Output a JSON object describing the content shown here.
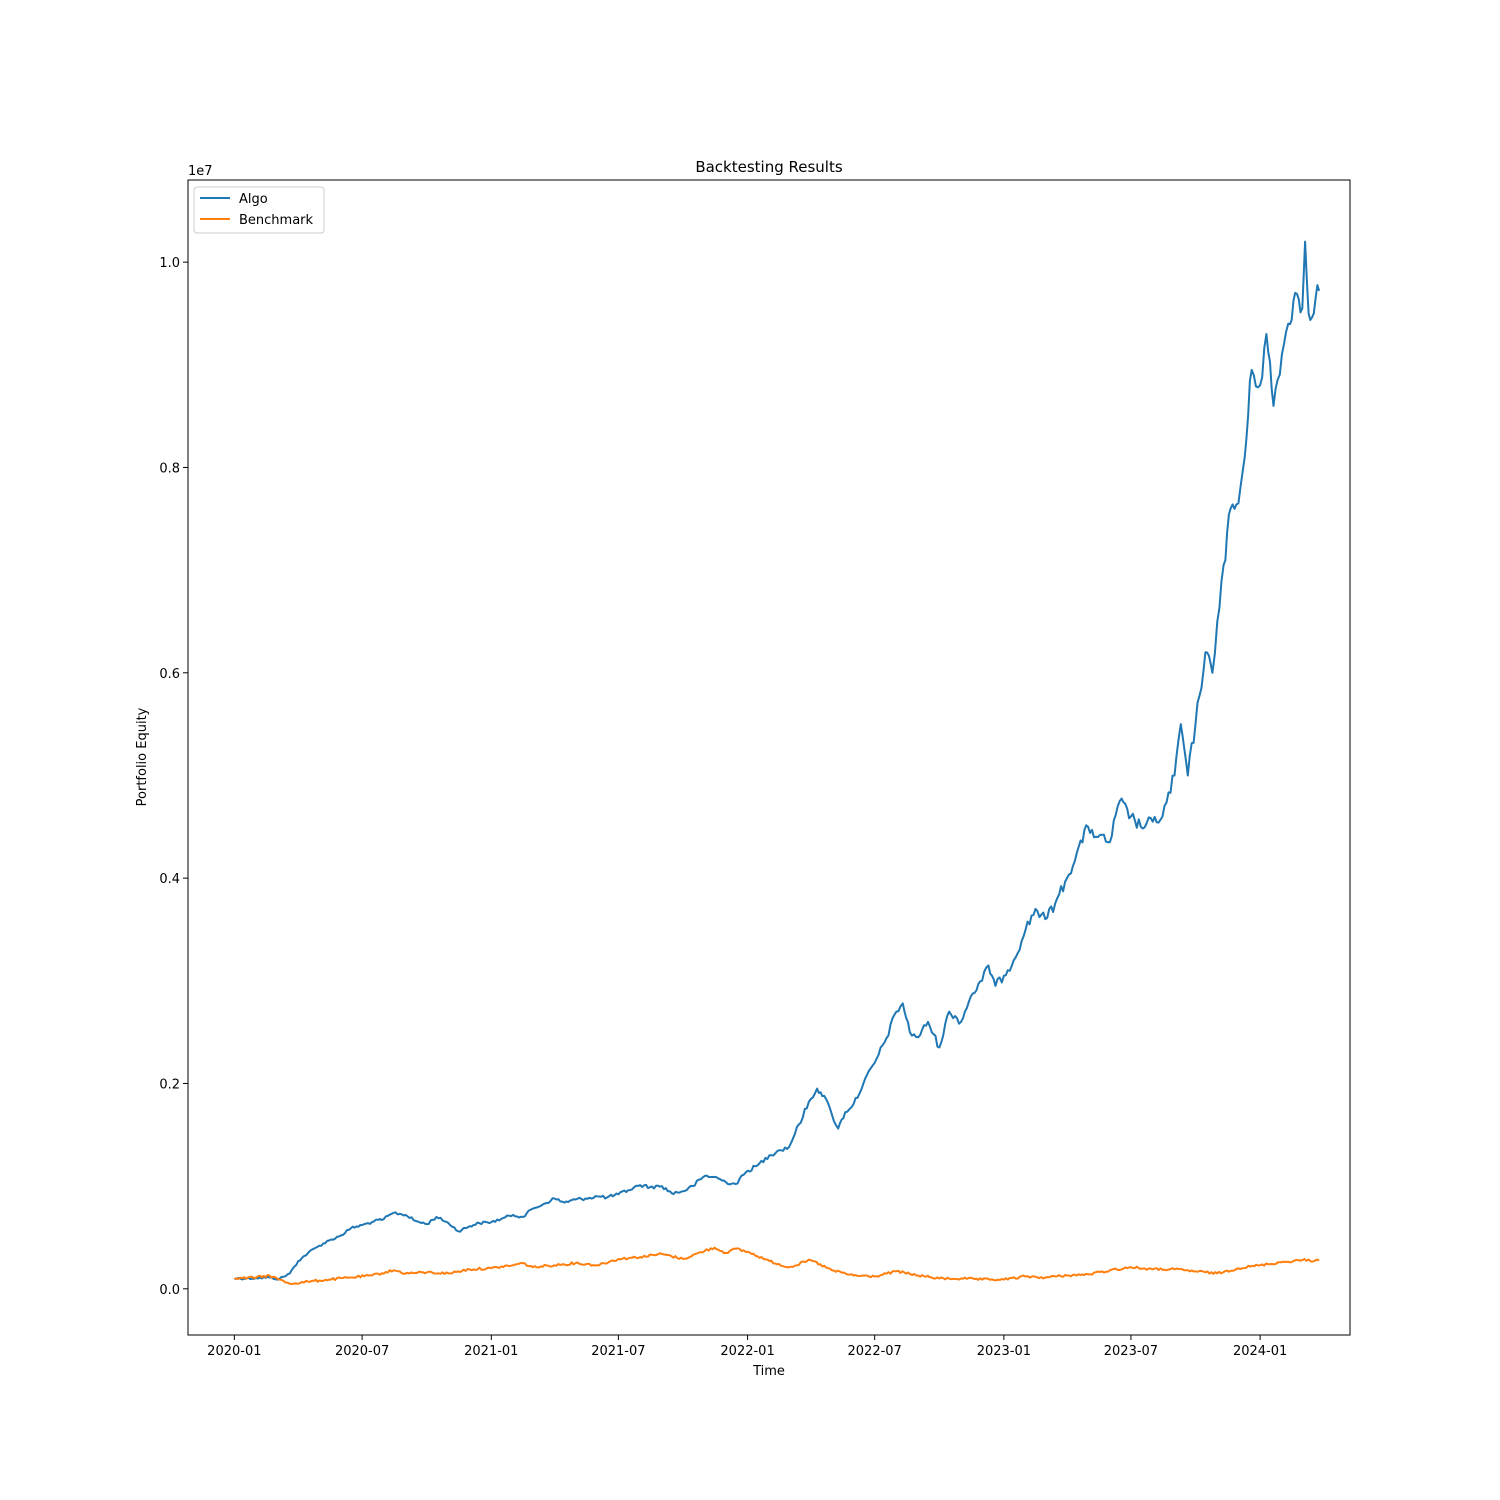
{
  "chart_data": {
    "type": "line",
    "title": "Backtesting Results",
    "xlabel": "Time",
    "ylabel": "Portfolio Equity",
    "y_offset_text": "1e7",
    "y_scale_factor": 10000000,
    "xlim": [
      "2019-10-27",
      "2024-05-08"
    ],
    "ylim": [
      -450000,
      10800000
    ],
    "x_ticks": [
      {
        "date": "2020-01-01",
        "label": "2020-01"
      },
      {
        "date": "2020-07-01",
        "label": "2020-07"
      },
      {
        "date": "2021-01-01",
        "label": "2021-01"
      },
      {
        "date": "2021-07-01",
        "label": "2021-07"
      },
      {
        "date": "2022-01-01",
        "label": "2022-01"
      },
      {
        "date": "2022-07-01",
        "label": "2022-07"
      },
      {
        "date": "2023-01-01",
        "label": "2023-01"
      },
      {
        "date": "2023-07-01",
        "label": "2023-07"
      },
      {
        "date": "2024-01-01",
        "label": "2024-01"
      }
    ],
    "y_ticks": [
      {
        "value": 0,
        "label": "0.0"
      },
      {
        "value": 2000000,
        "label": "0.2"
      },
      {
        "value": 4000000,
        "label": "0.4"
      },
      {
        "value": 6000000,
        "label": "0.6"
      },
      {
        "value": 8000000,
        "label": "0.8"
      },
      {
        "value": 10000000,
        "label": "1.0"
      }
    ],
    "grid": false,
    "legend_position": "top-left",
    "series": [
      {
        "name": "Algo",
        "color": "#1f77b4",
        "points": [
          [
            "2020-01-01",
            100000
          ],
          [
            "2020-02-01",
            105000
          ],
          [
            "2020-02-20",
            110000
          ],
          [
            "2020-03-05",
            95000
          ],
          [
            "2020-03-20",
            150000
          ],
          [
            "2020-04-01",
            270000
          ],
          [
            "2020-04-15",
            350000
          ],
          [
            "2020-05-01",
            420000
          ],
          [
            "2020-05-15",
            470000
          ],
          [
            "2020-06-01",
            520000
          ],
          [
            "2020-06-15",
            590000
          ],
          [
            "2020-07-01",
            620000
          ],
          [
            "2020-07-15",
            650000
          ],
          [
            "2020-08-01",
            680000
          ],
          [
            "2020-08-15",
            740000
          ],
          [
            "2020-09-01",
            720000
          ],
          [
            "2020-09-15",
            660000
          ],
          [
            "2020-10-01",
            630000
          ],
          [
            "2020-10-15",
            700000
          ],
          [
            "2020-11-01",
            640000
          ],
          [
            "2020-11-15",
            560000
          ],
          [
            "2020-12-01",
            610000
          ],
          [
            "2020-12-15",
            640000
          ],
          [
            "2021-01-01",
            650000
          ],
          [
            "2021-01-15",
            680000
          ],
          [
            "2021-02-01",
            720000
          ],
          [
            "2021-02-15",
            700000
          ],
          [
            "2021-03-01",
            780000
          ],
          [
            "2021-03-15",
            820000
          ],
          [
            "2021-04-01",
            880000
          ],
          [
            "2021-04-15",
            840000
          ],
          [
            "2021-05-01",
            870000
          ],
          [
            "2021-05-15",
            880000
          ],
          [
            "2021-06-01",
            900000
          ],
          [
            "2021-06-15",
            890000
          ],
          [
            "2021-07-01",
            920000
          ],
          [
            "2021-07-15",
            960000
          ],
          [
            "2021-08-01",
            1010000
          ],
          [
            "2021-08-15",
            990000
          ],
          [
            "2021-09-01",
            1000000
          ],
          [
            "2021-09-15",
            930000
          ],
          [
            "2021-10-01",
            950000
          ],
          [
            "2021-10-15",
            1000000
          ],
          [
            "2021-11-01",
            1100000
          ],
          [
            "2021-11-15",
            1090000
          ],
          [
            "2021-12-01",
            1040000
          ],
          [
            "2021-12-15",
            1020000
          ],
          [
            "2022-01-01",
            1150000
          ],
          [
            "2022-01-15",
            1200000
          ],
          [
            "2022-02-01",
            1300000
          ],
          [
            "2022-02-15",
            1350000
          ],
          [
            "2022-03-01",
            1380000
          ],
          [
            "2022-03-15",
            1600000
          ],
          [
            "2022-04-01",
            1850000
          ],
          [
            "2022-04-10",
            1950000
          ],
          [
            "2022-04-20",
            1880000
          ],
          [
            "2022-05-01",
            1700000
          ],
          [
            "2022-05-10",
            1560000
          ],
          [
            "2022-05-20",
            1720000
          ],
          [
            "2022-06-01",
            1800000
          ],
          [
            "2022-06-15",
            2000000
          ],
          [
            "2022-07-01",
            2200000
          ],
          [
            "2022-07-15",
            2400000
          ],
          [
            "2022-08-01",
            2700000
          ],
          [
            "2022-08-10",
            2780000
          ],
          [
            "2022-08-20",
            2500000
          ],
          [
            "2022-09-01",
            2450000
          ],
          [
            "2022-09-15",
            2600000
          ],
          [
            "2022-10-01",
            2350000
          ],
          [
            "2022-10-15",
            2700000
          ],
          [
            "2022-11-01",
            2600000
          ],
          [
            "2022-11-15",
            2850000
          ],
          [
            "2022-12-01",
            3000000
          ],
          [
            "2022-12-10",
            3150000
          ],
          [
            "2022-12-20",
            2950000
          ],
          [
            "2023-01-01",
            3050000
          ],
          [
            "2023-01-15",
            3200000
          ],
          [
            "2023-02-01",
            3500000
          ],
          [
            "2023-02-15",
            3700000
          ],
          [
            "2023-03-01",
            3600000
          ],
          [
            "2023-03-15",
            3750000
          ],
          [
            "2023-04-01",
            4000000
          ],
          [
            "2023-04-15",
            4250000
          ],
          [
            "2023-05-01",
            4500000
          ],
          [
            "2023-05-15",
            4400000
          ],
          [
            "2023-06-01",
            4350000
          ],
          [
            "2023-06-15",
            4750000
          ],
          [
            "2023-07-01",
            4600000
          ],
          [
            "2023-07-15",
            4500000
          ],
          [
            "2023-08-01",
            4550000
          ],
          [
            "2023-08-15",
            4600000
          ],
          [
            "2023-09-01",
            5000000
          ],
          [
            "2023-09-10",
            5500000
          ],
          [
            "2023-09-20",
            5000000
          ],
          [
            "2023-10-01",
            5500000
          ],
          [
            "2023-10-15",
            6200000
          ],
          [
            "2023-10-25",
            6000000
          ],
          [
            "2023-11-01",
            6500000
          ],
          [
            "2023-11-10",
            7050000
          ],
          [
            "2023-11-20",
            7600000
          ],
          [
            "2023-12-01",
            7650000
          ],
          [
            "2023-12-10",
            8100000
          ],
          [
            "2023-12-20",
            8950000
          ],
          [
            "2024-01-01",
            8800000
          ],
          [
            "2024-01-10",
            9300000
          ],
          [
            "2024-01-20",
            8600000
          ],
          [
            "2024-02-01",
            9100000
          ],
          [
            "2024-02-10",
            9400000
          ],
          [
            "2024-02-20",
            9700000
          ],
          [
            "2024-03-01",
            9550000
          ],
          [
            "2024-03-05",
            10200000
          ],
          [
            "2024-03-10",
            9500000
          ],
          [
            "2024-03-20",
            9650000
          ],
          [
            "2024-03-25",
            9720000
          ]
        ]
      },
      {
        "name": "Benchmark",
        "color": "#ff7f0e",
        "points": [
          [
            "2020-01-01",
            100000
          ],
          [
            "2020-02-01",
            110000
          ],
          [
            "2020-02-20",
            130000
          ],
          [
            "2020-03-05",
            90000
          ],
          [
            "2020-03-20",
            50000
          ],
          [
            "2020-04-15",
            70000
          ],
          [
            "2020-05-15",
            90000
          ],
          [
            "2020-06-15",
            110000
          ],
          [
            "2020-07-15",
            130000
          ],
          [
            "2020-08-15",
            180000
          ],
          [
            "2020-09-01",
            150000
          ],
          [
            "2020-10-01",
            160000
          ],
          [
            "2020-11-01",
            150000
          ],
          [
            "2020-12-01",
            190000
          ],
          [
            "2021-01-01",
            200000
          ],
          [
            "2021-02-01",
            230000
          ],
          [
            "2021-02-15",
            250000
          ],
          [
            "2021-03-01",
            210000
          ],
          [
            "2021-04-01",
            230000
          ],
          [
            "2021-05-01",
            250000
          ],
          [
            "2021-06-01",
            230000
          ],
          [
            "2021-07-01",
            290000
          ],
          [
            "2021-08-01",
            310000
          ],
          [
            "2021-09-01",
            340000
          ],
          [
            "2021-10-01",
            290000
          ],
          [
            "2021-11-01",
            370000
          ],
          [
            "2021-11-15",
            400000
          ],
          [
            "2021-12-01",
            350000
          ],
          [
            "2021-12-15",
            390000
          ],
          [
            "2022-01-01",
            360000
          ],
          [
            "2022-02-01",
            270000
          ],
          [
            "2022-03-01",
            210000
          ],
          [
            "2022-04-01",
            280000
          ],
          [
            "2022-05-01",
            180000
          ],
          [
            "2022-06-01",
            130000
          ],
          [
            "2022-07-01",
            120000
          ],
          [
            "2022-08-01",
            170000
          ],
          [
            "2022-09-01",
            130000
          ],
          [
            "2022-10-01",
            100000
          ],
          [
            "2022-11-01",
            100000
          ],
          [
            "2022-12-01",
            90000
          ],
          [
            "2023-01-01",
            90000
          ],
          [
            "2023-02-01",
            120000
          ],
          [
            "2023-03-01",
            110000
          ],
          [
            "2023-04-01",
            130000
          ],
          [
            "2023-05-01",
            140000
          ],
          [
            "2023-06-01",
            180000
          ],
          [
            "2023-07-01",
            210000
          ],
          [
            "2023-08-01",
            190000
          ],
          [
            "2023-09-01",
            190000
          ],
          [
            "2023-10-01",
            170000
          ],
          [
            "2023-11-01",
            150000
          ],
          [
            "2023-12-01",
            200000
          ],
          [
            "2024-01-01",
            230000
          ],
          [
            "2024-02-01",
            260000
          ],
          [
            "2024-03-01",
            280000
          ],
          [
            "2024-03-25",
            275000
          ]
        ]
      }
    ]
  }
}
